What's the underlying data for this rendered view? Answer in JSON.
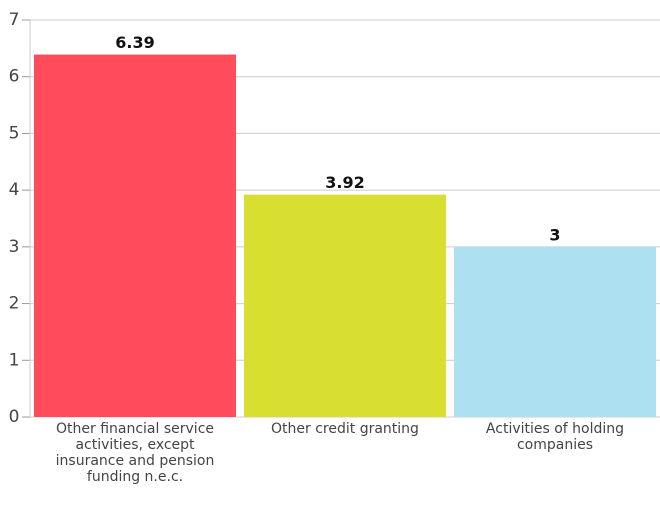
{
  "chart_data": {
    "type": "bar",
    "categories": [
      "Other financial service activities, except insurance and pension funding n.e.c.",
      "Other credit granting",
      "Activities of holding companies"
    ],
    "values": [
      6.39,
      3.92,
      3
    ],
    "colors": [
      "#ff4b5a",
      "#d8df30",
      "#ade1f2"
    ],
    "ylim": [
      0,
      7
    ],
    "yticks": [
      0,
      1,
      2,
      3,
      4,
      5,
      6,
      7
    ],
    "grid": true
  }
}
